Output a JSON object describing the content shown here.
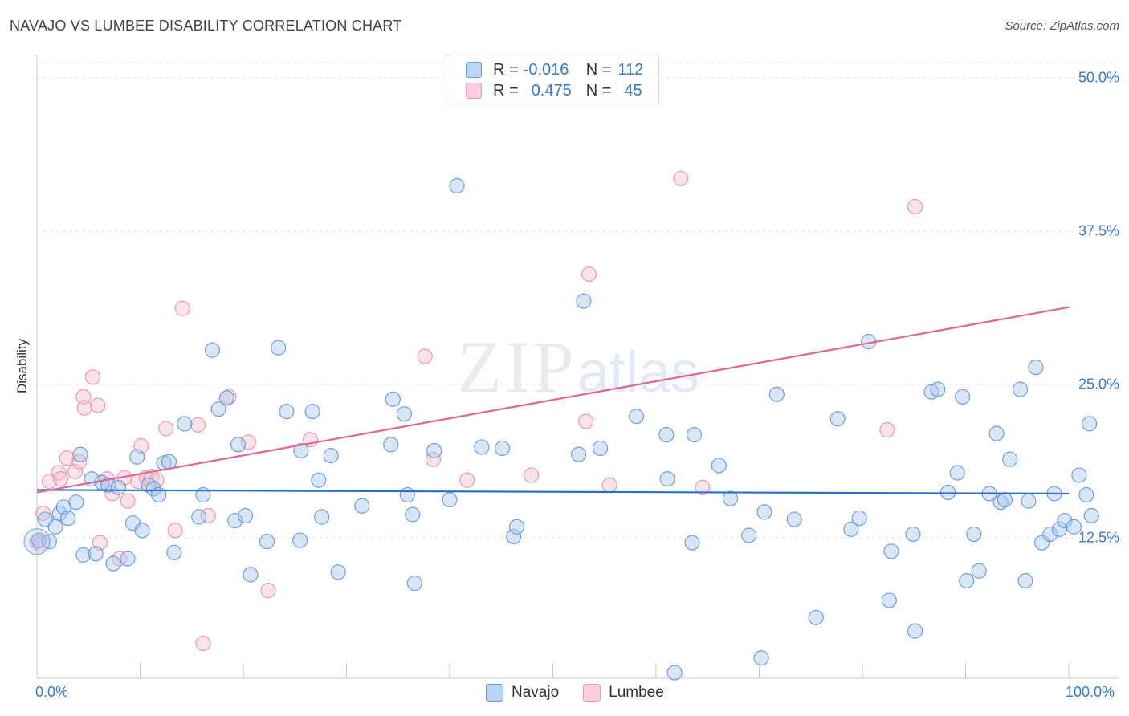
{
  "title": "NAVAJO VS LUMBEE DISABILITY CORRELATION CHART",
  "source": "Source: ZipAtlas.com",
  "watermark": "ZIPatlas",
  "colors": {
    "navajo_fill": "#a9c8f0",
    "navajo_stroke": "#5b8fd6",
    "navajo_line": "#2a6fce",
    "lumbee_fill": "#f8c0cf",
    "lumbee_stroke": "#e98aa5",
    "lumbee_line": "#e0658f",
    "tick_text": "#3a78c9",
    "grid": "#e3e3e3"
  },
  "legend_top": {
    "rows": [
      {
        "r_label": "R =",
        "r_value": "-0.016",
        "n_label": "N =",
        "n_value": "112"
      },
      {
        "r_label": "R =",
        "r_value": "0.475",
        "n_label": "N =",
        "n_value": "45"
      }
    ]
  },
  "legend_bottom": [
    "Navajo",
    "Lumbee"
  ],
  "chart_data": {
    "type": "scatter",
    "title": "NAVAJO VS LUMBEE DISABILITY CORRELATION CHART",
    "xlabel": "",
    "ylabel": "Disability",
    "xlim": [
      0,
      100
    ],
    "ylim": [
      0,
      51
    ],
    "x_tick_labels": [
      "0.0%",
      "100.0%"
    ],
    "y_ticks": [
      12.5,
      25.0,
      37.5,
      50.0
    ],
    "y_tick_labels": [
      "12.5%",
      "25.0%",
      "37.5%",
      "50.0%"
    ],
    "grid": "horizontal dashed",
    "legend_position": "top-center",
    "series": [
      {
        "name": "Navajo",
        "trend": {
          "x": [
            0,
            100
          ],
          "y": [
            16.4,
            16.1
          ]
        },
        "points": [
          [
            0.2,
            12.3
          ],
          [
            0.8,
            14.0
          ],
          [
            1.2,
            12.2
          ],
          [
            1.8,
            13.4
          ],
          [
            2.2,
            14.5
          ],
          [
            2.6,
            15.0
          ],
          [
            3.0,
            14.1
          ],
          [
            3.8,
            15.4
          ],
          [
            4.2,
            19.3
          ],
          [
            4.5,
            11.1
          ],
          [
            5.3,
            17.3
          ],
          [
            5.7,
            11.2
          ],
          [
            6.3,
            17.0
          ],
          [
            6.9,
            16.8
          ],
          [
            7.4,
            10.4
          ],
          [
            7.9,
            16.6
          ],
          [
            8.8,
            10.8
          ],
          [
            9.3,
            13.7
          ],
          [
            9.7,
            19.1
          ],
          [
            10.2,
            13.1
          ],
          [
            10.8,
            16.8
          ],
          [
            11.3,
            16.5
          ],
          [
            11.8,
            16.0
          ],
          [
            12.3,
            18.6
          ],
          [
            12.8,
            18.7
          ],
          [
            13.3,
            11.3
          ],
          [
            14.3,
            21.8
          ],
          [
            15.7,
            14.2
          ],
          [
            16.1,
            16.0
          ],
          [
            17.0,
            27.8
          ],
          [
            17.6,
            23.0
          ],
          [
            18.4,
            23.9
          ],
          [
            19.2,
            13.9
          ],
          [
            19.5,
            20.1
          ],
          [
            20.2,
            14.3
          ],
          [
            20.7,
            9.5
          ],
          [
            22.3,
            12.2
          ],
          [
            23.4,
            28.0
          ],
          [
            24.2,
            22.8
          ],
          [
            25.5,
            12.3
          ],
          [
            25.6,
            19.6
          ],
          [
            26.7,
            22.8
          ],
          [
            27.3,
            17.2
          ],
          [
            27.6,
            14.2
          ],
          [
            28.5,
            19.2
          ],
          [
            29.2,
            9.7
          ],
          [
            31.5,
            15.1
          ],
          [
            34.3,
            20.1
          ],
          [
            34.5,
            23.8
          ],
          [
            35.6,
            22.6
          ],
          [
            35.9,
            16.0
          ],
          [
            36.4,
            14.4
          ],
          [
            36.6,
            8.8
          ],
          [
            38.5,
            19.6
          ],
          [
            40.0,
            15.6
          ],
          [
            40.7,
            41.2
          ],
          [
            43.1,
            19.9
          ],
          [
            45.1,
            19.8
          ],
          [
            46.2,
            12.6
          ],
          [
            46.5,
            13.4
          ],
          [
            52.5,
            19.3
          ],
          [
            53.0,
            31.8
          ],
          [
            54.6,
            19.8
          ],
          [
            58.1,
            22.4
          ],
          [
            61.0,
            20.9
          ],
          [
            61.1,
            17.3
          ],
          [
            61.8,
            1.5
          ],
          [
            63.5,
            12.1
          ],
          [
            63.7,
            20.9
          ],
          [
            66.1,
            18.4
          ],
          [
            67.2,
            15.7
          ],
          [
            69.0,
            12.7
          ],
          [
            70.2,
            2.7
          ],
          [
            70.5,
            14.6
          ],
          [
            71.7,
            24.2
          ],
          [
            73.4,
            14.0
          ],
          [
            75.5,
            6.0
          ],
          [
            77.6,
            22.2
          ],
          [
            78.9,
            13.2
          ],
          [
            79.7,
            14.1
          ],
          [
            80.6,
            28.5
          ],
          [
            82.6,
            7.4
          ],
          [
            82.8,
            11.4
          ],
          [
            84.9,
            12.8
          ],
          [
            85.1,
            4.9
          ],
          [
            86.7,
            24.4
          ],
          [
            87.3,
            24.6
          ],
          [
            88.3,
            16.2
          ],
          [
            89.2,
            17.8
          ],
          [
            89.7,
            24.0
          ],
          [
            90.1,
            9.0
          ],
          [
            90.8,
            12.8
          ],
          [
            91.3,
            9.8
          ],
          [
            92.3,
            16.1
          ],
          [
            93.0,
            21.0
          ],
          [
            93.4,
            15.4
          ],
          [
            93.8,
            15.6
          ],
          [
            94.3,
            18.9
          ],
          [
            95.3,
            24.6
          ],
          [
            95.8,
            9.0
          ],
          [
            96.1,
            15.5
          ],
          [
            96.8,
            26.4
          ],
          [
            97.4,
            12.1
          ],
          [
            98.2,
            12.8
          ],
          [
            98.6,
            16.1
          ],
          [
            99.1,
            13.2
          ],
          [
            99.6,
            13.9
          ],
          [
            100.5,
            13.4
          ],
          [
            101.0,
            17.6
          ],
          [
            101.7,
            16.0
          ],
          [
            102.0,
            21.8
          ],
          [
            102.2,
            14.3
          ]
        ]
      },
      {
        "name": "Lumbee",
        "trend": {
          "x": [
            0,
            100
          ],
          "y": [
            16.2,
            31.3
          ]
        },
        "points": [
          [
            0.6,
            14.5
          ],
          [
            1.2,
            17.1
          ],
          [
            2.1,
            17.8
          ],
          [
            2.3,
            17.3
          ],
          [
            2.9,
            19.0
          ],
          [
            3.7,
            17.9
          ],
          [
            4.1,
            18.7
          ],
          [
            4.5,
            24.0
          ],
          [
            4.6,
            23.1
          ],
          [
            5.4,
            25.6
          ],
          [
            5.9,
            23.3
          ],
          [
            6.1,
            12.1
          ],
          [
            6.8,
            17.3
          ],
          [
            7.3,
            16.1
          ],
          [
            8.0,
            10.8
          ],
          [
            8.5,
            17.4
          ],
          [
            8.8,
            15.5
          ],
          [
            9.8,
            17.1
          ],
          [
            10.1,
            20.0
          ],
          [
            10.6,
            17.4
          ],
          [
            11.1,
            17.5
          ],
          [
            11.6,
            17.2
          ],
          [
            12.5,
            21.4
          ],
          [
            13.4,
            13.1
          ],
          [
            14.1,
            31.2
          ],
          [
            15.6,
            21.7
          ],
          [
            16.1,
            3.9
          ],
          [
            16.6,
            14.3
          ],
          [
            18.6,
            24.0
          ],
          [
            20.5,
            20.3
          ],
          [
            22.4,
            8.2
          ],
          [
            26.5,
            20.5
          ],
          [
            37.6,
            27.3
          ],
          [
            38.4,
            18.9
          ],
          [
            41.7,
            17.2
          ],
          [
            47.9,
            17.6
          ],
          [
            53.2,
            22.0
          ],
          [
            53.5,
            34.0
          ],
          [
            55.5,
            16.8
          ],
          [
            62.4,
            41.8
          ],
          [
            64.5,
            16.6
          ],
          [
            82.4,
            21.3
          ],
          [
            85.1,
            39.5
          ],
          [
            0.0,
            12.2
          ],
          [
            0.3,
            12.0
          ]
        ]
      }
    ]
  }
}
